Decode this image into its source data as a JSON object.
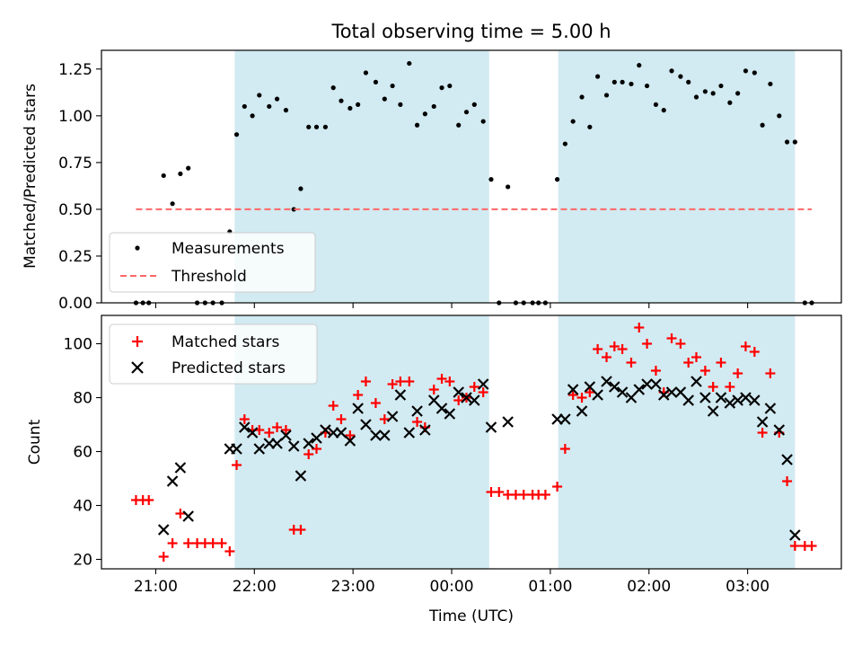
{
  "figure": {
    "title": "Total observing time = 5.00 h"
  },
  "chart_data": [
    {
      "type": "scatter",
      "panel": "top",
      "xlabel": "",
      "ylabel": "Matched/Predicted stars",
      "xlim": [
        20.45,
        27.95
      ],
      "ylim": [
        0.0,
        1.35
      ],
      "yticks": [
        0.0,
        0.25,
        0.5,
        0.75,
        1.0,
        1.25
      ],
      "ytick_labels": [
        "0.00",
        "0.25",
        "0.50",
        "0.75",
        "1.00",
        "1.25"
      ],
      "xticks": [
        21,
        22,
        23,
        24,
        25,
        26,
        27
      ],
      "shaded_intervals": [
        [
          21.8,
          24.38
        ],
        [
          25.08,
          27.48
        ]
      ],
      "shade_color": "#add8e6",
      "legend": {
        "placement": "lower-left",
        "entries": [
          "Measurements",
          "Threshold"
        ]
      },
      "series": [
        {
          "name": "Measurements",
          "marker": "dot",
          "color": "#000000",
          "points": [
            [
              20.8,
              0.0
            ],
            [
              20.87,
              0.0
            ],
            [
              20.93,
              0.0
            ],
            [
              21.08,
              0.68
            ],
            [
              21.17,
              0.53
            ],
            [
              21.25,
              0.69
            ],
            [
              21.33,
              0.72
            ],
            [
              21.42,
              0.0
            ],
            [
              21.5,
              0.0
            ],
            [
              21.58,
              0.0
            ],
            [
              21.67,
              0.0
            ],
            [
              21.75,
              0.38
            ],
            [
              21.82,
              0.9
            ],
            [
              21.9,
              1.05
            ],
            [
              21.98,
              1.0
            ],
            [
              22.05,
              1.11
            ],
            [
              22.15,
              1.05
            ],
            [
              22.23,
              1.09
            ],
            [
              22.32,
              1.03
            ],
            [
              22.4,
              0.5
            ],
            [
              22.47,
              0.61
            ],
            [
              22.55,
              0.94
            ],
            [
              22.63,
              0.94
            ],
            [
              22.72,
              0.94
            ],
            [
              22.8,
              1.15
            ],
            [
              22.88,
              1.08
            ],
            [
              22.97,
              1.04
            ],
            [
              23.05,
              1.06
            ],
            [
              23.13,
              1.23
            ],
            [
              23.23,
              1.18
            ],
            [
              23.32,
              1.09
            ],
            [
              23.4,
              1.16
            ],
            [
              23.48,
              1.06
            ],
            [
              23.57,
              1.28
            ],
            [
              23.65,
              0.95
            ],
            [
              23.73,
              1.01
            ],
            [
              23.82,
              1.05
            ],
            [
              23.9,
              1.15
            ],
            [
              23.98,
              1.16
            ],
            [
              24.07,
              0.95
            ],
            [
              24.15,
              1.02
            ],
            [
              24.23,
              1.06
            ],
            [
              24.32,
              0.97
            ],
            [
              24.4,
              0.66
            ],
            [
              24.48,
              0.0
            ],
            [
              24.57,
              0.62
            ],
            [
              24.65,
              0.0
            ],
            [
              24.73,
              0.0
            ],
            [
              24.82,
              0.0
            ],
            [
              24.88,
              0.0
            ],
            [
              24.95,
              0.0
            ],
            [
              25.07,
              0.66
            ],
            [
              25.15,
              0.85
            ],
            [
              25.23,
              0.97
            ],
            [
              25.32,
              1.1
            ],
            [
              25.4,
              0.94
            ],
            [
              25.48,
              1.21
            ],
            [
              25.57,
              1.11
            ],
            [
              25.65,
              1.18
            ],
            [
              25.73,
              1.18
            ],
            [
              25.82,
              1.17
            ],
            [
              25.9,
              1.27
            ],
            [
              25.98,
              1.16
            ],
            [
              26.07,
              1.06
            ],
            [
              26.15,
              1.03
            ],
            [
              26.23,
              1.24
            ],
            [
              26.32,
              1.21
            ],
            [
              26.4,
              1.18
            ],
            [
              26.48,
              1.1
            ],
            [
              26.57,
              1.13
            ],
            [
              26.65,
              1.12
            ],
            [
              26.73,
              1.16
            ],
            [
              26.82,
              1.07
            ],
            [
              26.9,
              1.12
            ],
            [
              26.98,
              1.24
            ],
            [
              27.07,
              1.23
            ],
            [
              27.15,
              0.95
            ],
            [
              27.23,
              1.17
            ],
            [
              27.32,
              1.0
            ],
            [
              27.4,
              0.86
            ],
            [
              27.48,
              0.86
            ],
            [
              27.58,
              0.0
            ],
            [
              27.65,
              0.0
            ]
          ]
        },
        {
          "name": "Threshold",
          "style": "dashed-line",
          "color": "#ff6666",
          "points": [
            [
              20.8,
              0.5
            ],
            [
              27.65,
              0.5
            ]
          ]
        }
      ]
    },
    {
      "type": "scatter",
      "panel": "bottom",
      "xlabel": "Time (UTC)",
      "ylabel": "Count",
      "xlim": [
        20.45,
        27.95
      ],
      "ylim": [
        16.5,
        110.5
      ],
      "yticks": [
        20,
        40,
        60,
        80,
        100
      ],
      "ytick_labels": [
        "20",
        "40",
        "60",
        "80",
        "100"
      ],
      "xticks": [
        21,
        22,
        23,
        24,
        25,
        26,
        27
      ],
      "xtick_labels": [
        "21:00",
        "22:00",
        "23:00",
        "00:00",
        "01:00",
        "02:00",
        "03:00"
      ],
      "shaded_intervals": [
        [
          21.8,
          24.38
        ],
        [
          25.08,
          27.48
        ]
      ],
      "shade_color": "#add8e6",
      "legend": {
        "placement": "top-left",
        "entries": [
          "Matched stars",
          "Predicted stars"
        ]
      },
      "series": [
        {
          "name": "Matched stars",
          "marker": "plus",
          "color": "#ff0000",
          "points": [
            [
              20.8,
              42
            ],
            [
              20.87,
              42
            ],
            [
              20.93,
              42
            ],
            [
              21.08,
              21
            ],
            [
              21.17,
              26
            ],
            [
              21.25,
              37
            ],
            [
              21.33,
              26
            ],
            [
              21.42,
              26
            ],
            [
              21.5,
              26
            ],
            [
              21.58,
              26
            ],
            [
              21.67,
              26
            ],
            [
              21.75,
              23
            ],
            [
              21.82,
              55
            ],
            [
              21.9,
              72
            ],
            [
              21.98,
              68
            ],
            [
              22.05,
              68
            ],
            [
              22.15,
              67
            ],
            [
              22.23,
              69
            ],
            [
              22.32,
              68
            ],
            [
              22.4,
              31
            ],
            [
              22.47,
              31
            ],
            [
              22.55,
              59
            ],
            [
              22.63,
              61
            ],
            [
              22.72,
              67
            ],
            [
              22.8,
              77
            ],
            [
              22.88,
              72
            ],
            [
              22.97,
              66
            ],
            [
              23.05,
              81
            ],
            [
              23.13,
              86
            ],
            [
              23.23,
              78
            ],
            [
              23.32,
              72
            ],
            [
              23.4,
              85
            ],
            [
              23.48,
              86
            ],
            [
              23.57,
              86
            ],
            [
              23.65,
              71
            ],
            [
              23.73,
              69
            ],
            [
              23.82,
              83
            ],
            [
              23.9,
              87
            ],
            [
              23.98,
              86
            ],
            [
              24.07,
              79
            ],
            [
              24.15,
              80
            ],
            [
              24.23,
              84
            ],
            [
              24.32,
              82
            ],
            [
              24.4,
              45
            ],
            [
              24.48,
              45
            ],
            [
              24.57,
              44
            ],
            [
              24.65,
              44
            ],
            [
              24.73,
              44
            ],
            [
              24.82,
              44
            ],
            [
              24.88,
              44
            ],
            [
              24.95,
              44
            ],
            [
              25.07,
              47
            ],
            [
              25.15,
              61
            ],
            [
              25.23,
              81
            ],
            [
              25.32,
              80
            ],
            [
              25.4,
              82
            ],
            [
              25.48,
              98
            ],
            [
              25.57,
              95
            ],
            [
              25.65,
              99
            ],
            [
              25.73,
              98
            ],
            [
              25.82,
              93
            ],
            [
              25.9,
              106
            ],
            [
              25.98,
              100
            ],
            [
              26.07,
              90
            ],
            [
              26.15,
              82
            ],
            [
              26.23,
              102
            ],
            [
              26.32,
              100
            ],
            [
              26.4,
              93
            ],
            [
              26.48,
              95
            ],
            [
              26.57,
              90
            ],
            [
              26.65,
              84
            ],
            [
              26.73,
              93
            ],
            [
              26.82,
              84
            ],
            [
              26.9,
              89
            ],
            [
              26.98,
              99
            ],
            [
              27.07,
              97
            ],
            [
              27.15,
              67
            ],
            [
              27.23,
              89
            ],
            [
              27.32,
              67
            ],
            [
              27.4,
              49
            ],
            [
              27.48,
              25
            ],
            [
              27.58,
              25
            ],
            [
              27.65,
              25
            ]
          ]
        },
        {
          "name": "Predicted stars",
          "marker": "x",
          "color": "#000000",
          "points": [
            [
              21.08,
              31
            ],
            [
              21.17,
              49
            ],
            [
              21.25,
              54
            ],
            [
              21.33,
              36
            ],
            [
              21.75,
              61
            ],
            [
              21.82,
              61
            ],
            [
              21.9,
              69
            ],
            [
              21.98,
              67
            ],
            [
              22.05,
              61
            ],
            [
              22.15,
              63
            ],
            [
              22.23,
              63
            ],
            [
              22.32,
              66
            ],
            [
              22.4,
              62
            ],
            [
              22.47,
              51
            ],
            [
              22.55,
              63
            ],
            [
              22.63,
              65
            ],
            [
              22.72,
              68
            ],
            [
              22.8,
              67
            ],
            [
              22.88,
              67
            ],
            [
              22.97,
              64
            ],
            [
              23.05,
              76
            ],
            [
              23.13,
              70
            ],
            [
              23.23,
              66
            ],
            [
              23.32,
              66
            ],
            [
              23.4,
              73
            ],
            [
              23.48,
              81
            ],
            [
              23.57,
              67
            ],
            [
              23.65,
              75
            ],
            [
              23.73,
              68
            ],
            [
              23.82,
              79
            ],
            [
              23.9,
              76
            ],
            [
              23.98,
              74
            ],
            [
              24.07,
              82
            ],
            [
              24.15,
              80
            ],
            [
              24.23,
              79
            ],
            [
              24.32,
              85
            ],
            [
              24.4,
              69
            ],
            [
              24.57,
              71
            ],
            [
              25.07,
              72
            ],
            [
              25.15,
              72
            ],
            [
              25.23,
              83
            ],
            [
              25.32,
              75
            ],
            [
              25.4,
              84
            ],
            [
              25.48,
              81
            ],
            [
              25.57,
              86
            ],
            [
              25.65,
              84
            ],
            [
              25.73,
              82
            ],
            [
              25.82,
              80
            ],
            [
              25.9,
              83
            ],
            [
              25.98,
              85
            ],
            [
              26.07,
              85
            ],
            [
              26.15,
              81
            ],
            [
              26.23,
              82
            ],
            [
              26.32,
              82
            ],
            [
              26.4,
              79
            ],
            [
              26.48,
              86
            ],
            [
              26.57,
              80
            ],
            [
              26.65,
              75
            ],
            [
              26.73,
              80
            ],
            [
              26.82,
              78
            ],
            [
              26.9,
              79
            ],
            [
              26.98,
              80
            ],
            [
              27.07,
              79
            ],
            [
              27.15,
              71
            ],
            [
              27.23,
              76
            ],
            [
              27.32,
              68
            ],
            [
              27.4,
              57
            ],
            [
              27.48,
              29
            ]
          ]
        }
      ]
    }
  ]
}
